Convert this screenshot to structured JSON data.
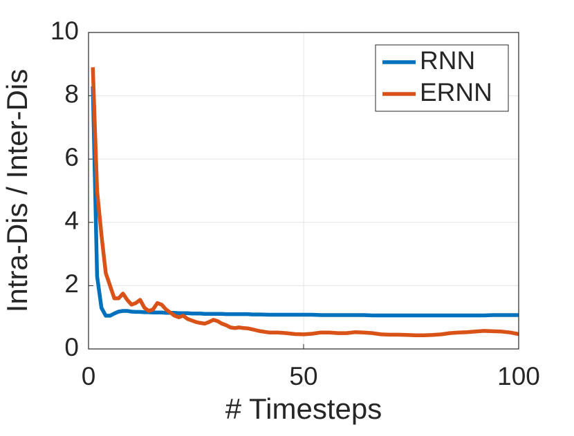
{
  "chart_data": {
    "type": "line",
    "x": [
      1,
      2,
      3,
      4,
      5,
      6,
      7,
      8,
      9,
      10,
      11,
      12,
      13,
      14,
      15,
      16,
      17,
      18,
      19,
      20,
      21,
      22,
      23,
      24,
      25,
      26,
      27,
      28,
      29,
      30,
      31,
      32,
      33,
      34,
      35,
      36,
      37,
      38,
      39,
      40,
      42,
      44,
      46,
      48,
      50,
      52,
      54,
      56,
      58,
      60,
      62,
      64,
      66,
      68,
      70,
      72,
      74,
      76,
      78,
      80,
      82,
      84,
      86,
      88,
      90,
      92,
      94,
      96,
      98,
      100
    ],
    "series": [
      {
        "name": "RNN",
        "color": "#0072BD",
        "values": [
          8.3,
          2.3,
          1.3,
          1.05,
          1.05,
          1.12,
          1.18,
          1.2,
          1.2,
          1.18,
          1.17,
          1.17,
          1.16,
          1.16,
          1.15,
          1.15,
          1.15,
          1.14,
          1.14,
          1.14,
          1.13,
          1.13,
          1.13,
          1.12,
          1.12,
          1.12,
          1.11,
          1.11,
          1.11,
          1.11,
          1.11,
          1.1,
          1.1,
          1.1,
          1.1,
          1.1,
          1.1,
          1.09,
          1.09,
          1.09,
          1.08,
          1.08,
          1.08,
          1.08,
          1.08,
          1.08,
          1.07,
          1.07,
          1.07,
          1.07,
          1.07,
          1.07,
          1.06,
          1.06,
          1.06,
          1.06,
          1.06,
          1.06,
          1.06,
          1.06,
          1.06,
          1.06,
          1.06,
          1.06,
          1.06,
          1.06,
          1.07,
          1.07,
          1.07,
          1.07
        ]
      },
      {
        "name": "ERNN",
        "color": "#D95319",
        "values": [
          8.9,
          5.0,
          3.6,
          2.4,
          2.0,
          1.6,
          1.6,
          1.75,
          1.55,
          1.4,
          1.45,
          1.55,
          1.3,
          1.2,
          1.25,
          1.45,
          1.4,
          1.25,
          1.15,
          1.05,
          1.0,
          1.05,
          0.95,
          0.9,
          0.85,
          0.82,
          0.8,
          0.85,
          0.92,
          0.88,
          0.8,
          0.75,
          0.68,
          0.66,
          0.68,
          0.66,
          0.65,
          0.62,
          0.59,
          0.56,
          0.52,
          0.52,
          0.5,
          0.47,
          0.46,
          0.48,
          0.52,
          0.52,
          0.5,
          0.5,
          0.53,
          0.52,
          0.5,
          0.46,
          0.45,
          0.45,
          0.44,
          0.43,
          0.43,
          0.44,
          0.46,
          0.5,
          0.52,
          0.53,
          0.55,
          0.57,
          0.56,
          0.55,
          0.52,
          0.47
        ]
      }
    ],
    "x_label": "# Timesteps",
    "y_label": "Intra-Dis / Inter-Dis",
    "xlim": [
      0,
      100
    ],
    "xticks": [
      0,
      50,
      100
    ],
    "ylim": [
      0,
      10
    ],
    "yticks": [
      0,
      2,
      4,
      6,
      8,
      10
    ],
    "grid": true,
    "legend": "upper-right"
  }
}
